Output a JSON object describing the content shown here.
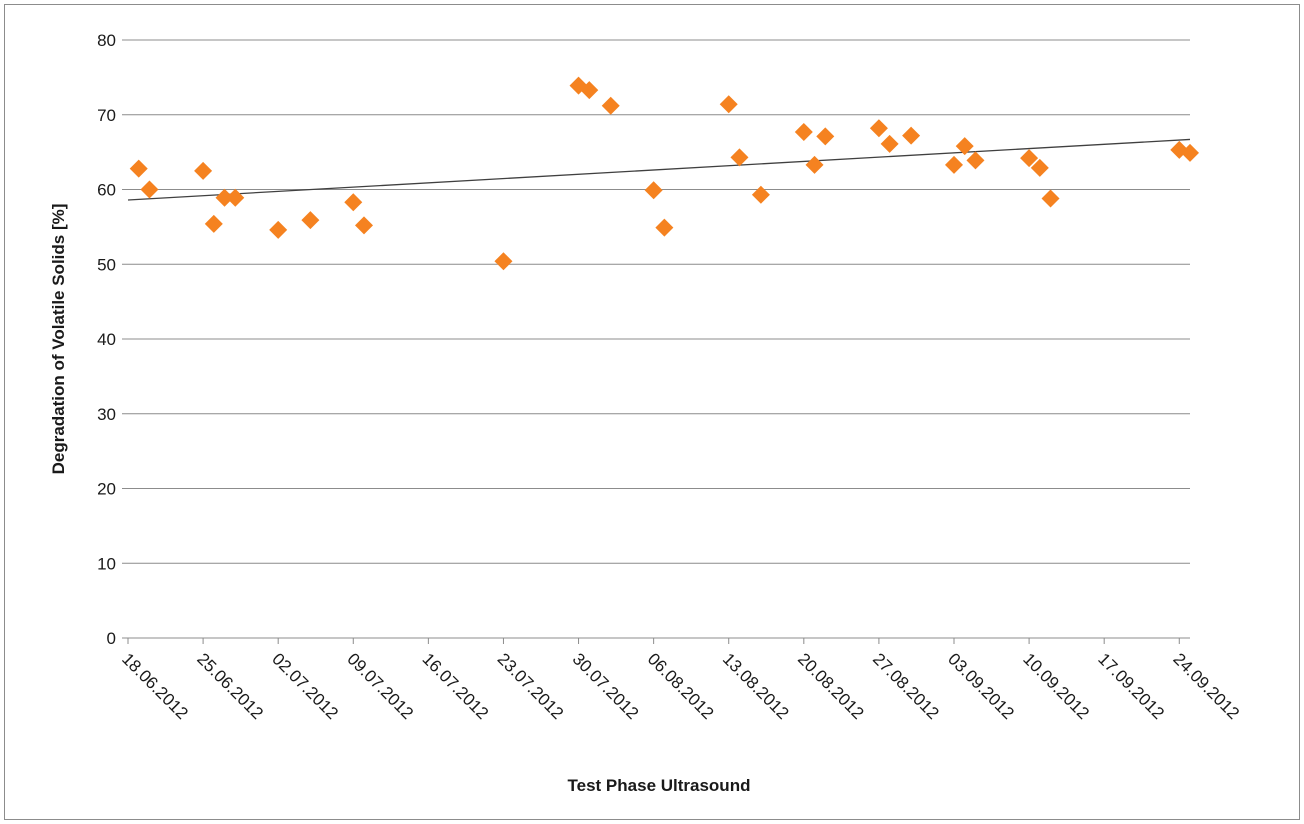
{
  "chart_data": {
    "type": "scatter",
    "title": "",
    "xlabel": "Test Phase Ultrasound",
    "ylabel": "Degradation of Volatile Solids [%]",
    "ylim": [
      0,
      80
    ],
    "xlim": [
      "18.06.2012",
      "25.09.2012"
    ],
    "x_is_date": true,
    "yticks": [
      0,
      10,
      20,
      30,
      40,
      50,
      60,
      70,
      80
    ],
    "xtick_labels": [
      "18.06.2012",
      "25.06.2012",
      "02.07.2012",
      "09.07.2012",
      "16.07.2012",
      "23.07.2012",
      "30.07.2012",
      "06.08.2012",
      "13.08.2012",
      "20.08.2012",
      "27.08.2012",
      "03.09.2012",
      "10.09.2012",
      "17.09.2012",
      "24.09.2012"
    ],
    "grid": "horizontal",
    "legend": "none",
    "marker": "diamond",
    "marker_color": "#f58220",
    "trendline": {
      "type": "linear",
      "color": "#404040",
      "start": [
        "18.06.2012",
        58.6
      ],
      "end": [
        "25.09.2012",
        66.7
      ]
    },
    "series": [
      {
        "points": [
          [
            "19.06.2012",
            62.8
          ],
          [
            "20.06.2012",
            60.0
          ],
          [
            "25.06.2012",
            62.5
          ],
          [
            "26.06.2012",
            55.4
          ],
          [
            "27.06.2012",
            58.9
          ],
          [
            "28.06.2012",
            58.9
          ],
          [
            "02.07.2012",
            54.6
          ],
          [
            "05.07.2012",
            55.9
          ],
          [
            "09.07.2012",
            58.3
          ],
          [
            "10.07.2012",
            55.2
          ],
          [
            "23.07.2012",
            50.4
          ],
          [
            "30.07.2012",
            73.9
          ],
          [
            "31.07.2012",
            73.3
          ],
          [
            "02.08.2012",
            71.2
          ],
          [
            "06.08.2012",
            59.9
          ],
          [
            "07.08.2012",
            54.9
          ],
          [
            "13.08.2012",
            71.4
          ],
          [
            "14.08.2012",
            64.3
          ],
          [
            "16.08.2012",
            59.3
          ],
          [
            "20.08.2012",
            67.7
          ],
          [
            "21.08.2012",
            63.3
          ],
          [
            "22.08.2012",
            67.1
          ],
          [
            "27.08.2012",
            68.2
          ],
          [
            "28.08.2012",
            66.1
          ],
          [
            "30.08.2012",
            67.2
          ],
          [
            "03.09.2012",
            63.3
          ],
          [
            "04.09.2012",
            65.8
          ],
          [
            "05.09.2012",
            63.9
          ],
          [
            "10.09.2012",
            64.2
          ],
          [
            "11.09.2012",
            62.9
          ],
          [
            "12.09.2012",
            58.8
          ],
          [
            "24.09.2012",
            65.3
          ],
          [
            "25.09.2012",
            64.9
          ]
        ]
      }
    ]
  }
}
